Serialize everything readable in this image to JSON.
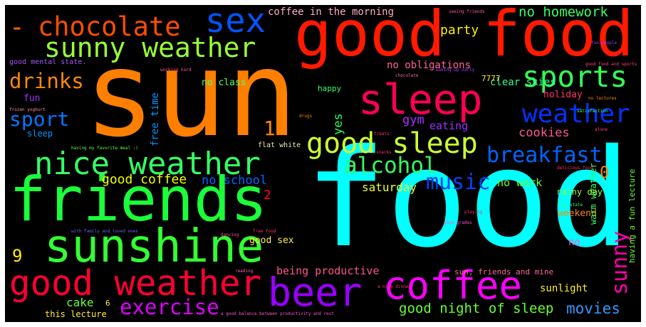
{
  "words": [
    "sun",
    "food",
    "good food",
    "friends",
    "sunshine",
    "good weather",
    "nice weather",
    "sleep",
    "sunny weather",
    "-",
    "chocolate",
    "sex",
    "coffee",
    "beer",
    "exercise",
    "good sleep",
    "sports",
    "weather",
    "breakfast",
    "sport",
    "drinks",
    "alcohol",
    "music",
    "good coffee",
    "no homework",
    "coffee in the morning",
    "party",
    "no obligations",
    "clear skies",
    "no class",
    "gym",
    "yes",
    "eating",
    "cookies",
    "holiday",
    "1",
    "0",
    "2",
    "9",
    "no school",
    "saturday",
    "no work",
    "weekend",
    "sunny",
    "warm weather",
    "having a fun lecture",
    "free time",
    "rainy day",
    "good sex",
    "being productive",
    "sun, friends and mine",
    "sunlight",
    "movies",
    "good night of sleep",
    "cake",
    "this lecture",
    "6",
    "no",
    "fun",
    "sleep",
    "good mental state.",
    "happy",
    "flat white",
    "7777",
    "seeing friends",
    "fun people",
    "chocolate",
    "waking up early",
    "good food and sports",
    "no lectures",
    "satisfaction",
    "alone",
    "delicious food",
    "flow state",
    "free food",
    "playing",
    "reading",
    "dancing",
    "with family and loved ones",
    "having my favorite meal :)",
    "a good balance between productivity and rest",
    "a nice dinner",
    "working hard",
    "drugs",
    "snacks",
    "good grades",
    "frozen yoghurt",
    "treats"
  ]
}
